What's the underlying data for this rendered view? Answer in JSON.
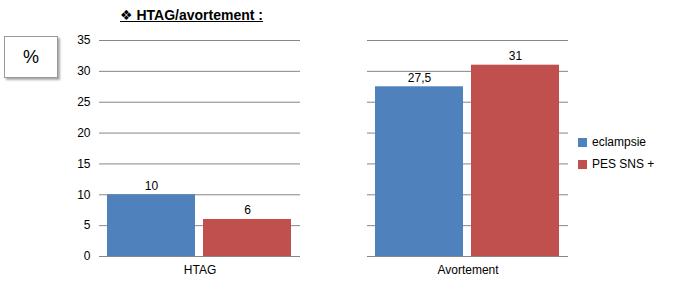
{
  "chart_data": {
    "type": "bar",
    "title": "❖ HTAG/avortement :",
    "y_label": "%",
    "categories": [
      "HTAG",
      "Avortement"
    ],
    "series": [
      {
        "name": "eclampsie",
        "color": "#4f81bd",
        "values": [
          10,
          27.5
        ],
        "value_labels": [
          "10",
          "27,5"
        ]
      },
      {
        "name": "PES SNS +",
        "color": "#c0504d",
        "values": [
          6,
          31
        ],
        "value_labels": [
          "6",
          "31"
        ]
      }
    ],
    "ylim": [
      0,
      35
    ],
    "yticks": [
      0,
      5,
      10,
      15,
      20,
      25,
      30,
      35
    ],
    "grid": true,
    "data_labels": true,
    "legend": "right"
  }
}
